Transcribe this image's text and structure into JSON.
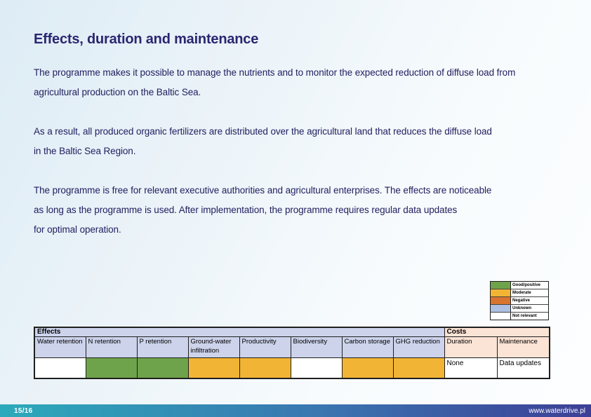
{
  "slide": {
    "title": "Effects, duration and maintenance",
    "paragraphs": [
      "The programme makes it possible to manage the nutrients and to monitor the expected reduction of diffuse load from\nagricultural production on the Baltic Sea.",
      "As a result, all produced organic fertilizers are distributed over the agricultural land that reduces the diffuse load\nin the Baltic Sea Region.",
      "The programme is free for relevant executive authorities and agricultural enterprises. The effects are noticeable\nas long as the programme is used. After implementation, the programme requires regular data updates\nfor optimal operation."
    ]
  },
  "legend": {
    "items": [
      {
        "label": "Good/positive",
        "color": "#6fa34b"
      },
      {
        "label": "Moderate",
        "color": "#f2b435"
      },
      {
        "label": "Negative",
        "color": "#d9742f"
      },
      {
        "label": "Unknown",
        "color": "#aec0e2"
      },
      {
        "label": "Not relevant",
        "color": "#ffffff"
      }
    ]
  },
  "table": {
    "group_headers": [
      {
        "label": "Effects",
        "span": 8,
        "color": "#ccd3eb"
      },
      {
        "label": "Costs",
        "span": 2,
        "color": "#fbe3d5"
      }
    ],
    "columns": [
      {
        "header": "Water retention",
        "group": "effects",
        "rating": "Not relevant",
        "cell_color": "#ffffff"
      },
      {
        "header": "N retention",
        "group": "effects",
        "rating": "Good/positive",
        "cell_color": "#6fa34b"
      },
      {
        "header": "P retention",
        "group": "effects",
        "rating": "Good/positive",
        "cell_color": "#6fa34b"
      },
      {
        "header": "Ground-water infiltration",
        "group": "effects",
        "rating": "Moderate",
        "cell_color": "#f2b435"
      },
      {
        "header": "Productivity",
        "group": "effects",
        "rating": "Moderate",
        "cell_color": "#f2b435"
      },
      {
        "header": "Biodiversity",
        "group": "effects",
        "rating": "Not relevant",
        "cell_color": "#ffffff"
      },
      {
        "header": "Carbon storage",
        "group": "effects",
        "rating": "Moderate",
        "cell_color": "#f2b435"
      },
      {
        "header": "GHG reduction",
        "group": "effects",
        "rating": "Moderate",
        "cell_color": "#f2b435"
      },
      {
        "header": "Duration",
        "group": "costs",
        "value": "None",
        "cell_color": "#ffffff"
      },
      {
        "header": "Maintenance",
        "group": "costs",
        "value": "Data updates",
        "cell_color": "#ffffff"
      }
    ]
  },
  "footer": {
    "page_number": "15/16",
    "website": "www.waterdrive.pl",
    "gradient_left": "#2caabb",
    "gradient_right": "#3d3f96"
  },
  "colors": {
    "effects_header_bg": "#ccd3eb",
    "costs_header_bg": "#fbe3d5",
    "title_text": "#2b2670",
    "body_text": "#232060"
  }
}
